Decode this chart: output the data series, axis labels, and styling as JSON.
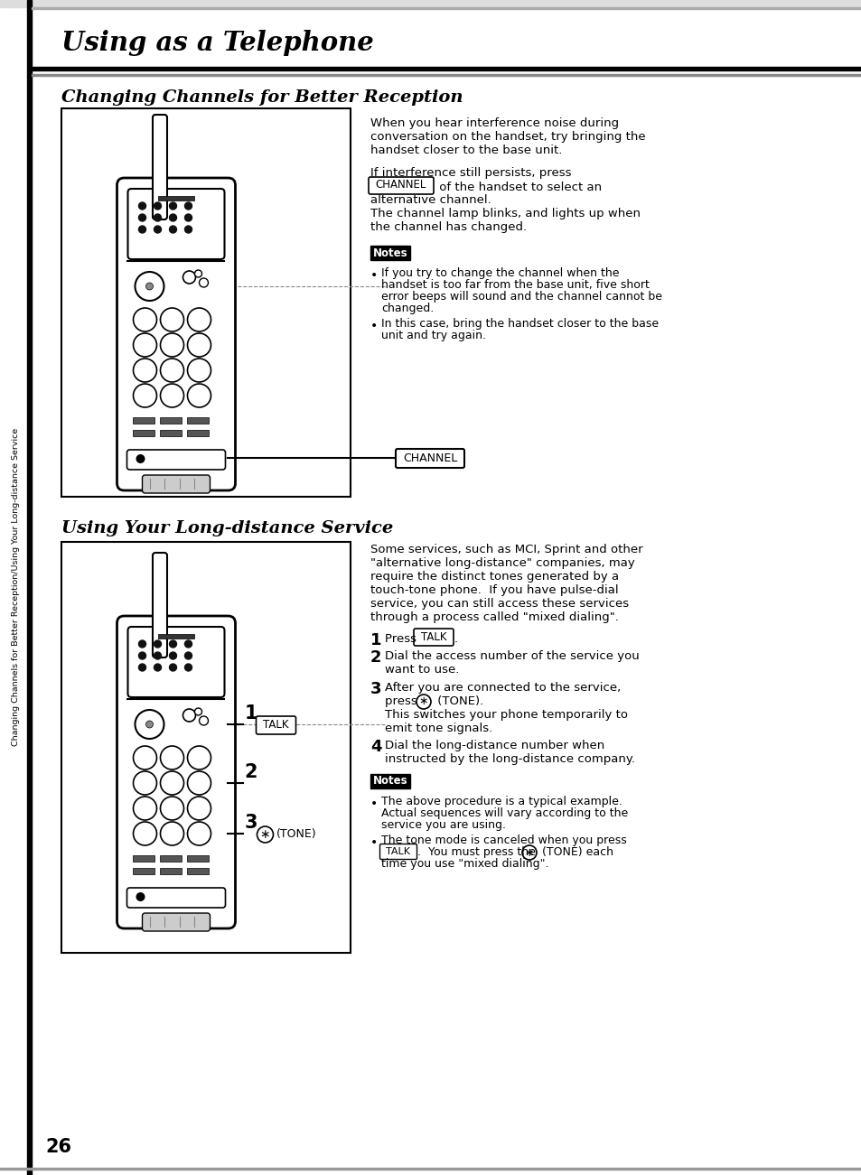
{
  "page_bg": "#ffffff",
  "header_title": "Using as a Telephone",
  "section1_title": "Changing Channels for Better Reception",
  "section2_title": "Using Your Long-distance Service",
  "sidebar_text": "Changing Channels for Better Reception/Using Your Long-distance Service",
  "page_number": "26",
  "section1_body1_lines": [
    "When you hear interference noise during",
    "conversation on the handset, try bringing the",
    "handset closer to the base unit."
  ],
  "section1_body2_line1": "If interference still persists, press",
  "section1_body2_line2_pre": "",
  "section1_body2_line2_box": "CHANNEL",
  "section1_body2_line2_post": " of the handset to select an",
  "section1_body2_lines_rest": [
    "alternative channel.",
    "The channel lamp blinks, and lights up when",
    "the channel has changed."
  ],
  "section1_note1_lines": [
    "If you try to change the channel when the",
    "handset is too far from the base unit, five short",
    "error beeps will sound and the channel cannot be",
    "changed."
  ],
  "section1_note2_lines": [
    "In this case, bring the handset closer to the base",
    "unit and try again."
  ],
  "section2_intro_lines": [
    "Some services, such as MCI, Sprint and other",
    "\"alternative long-distance\" companies, may",
    "require the distinct tones generated by a",
    "touch-tone phone.  If you have pulse-dial",
    "service, you can still access these services",
    "through a process called \"mixed dialing\"."
  ],
  "section2_step1_pre": "Press ",
  "section2_step1_box": "TALK",
  "section2_step1_post": ".",
  "section2_step2_lines": [
    "Dial the access number of the service you",
    "want to use."
  ],
  "section2_step3_lines": [
    "After you are connected to the service,",
    "press (* ) (TONE).",
    "This switches your phone temporarily to",
    "emit tone signals."
  ],
  "section2_step4_lines": [
    "Dial the long-distance number when",
    "instructed by the long-distance company."
  ],
  "section2_note1_lines": [
    "The above procedure is a typical example.",
    "Actual sequences will vary according to the",
    "service you are using."
  ],
  "section2_note2_line1": "The tone mode is canceled when you press",
  "section2_note2_box1": "TALK",
  "section2_note2_line2_post": ".  You must press the",
  "section2_note2_box2": "*",
  "section2_note2_line2_post2": "(TONE) each",
  "section2_note2_line3": "time you use \"mixed dialing\"."
}
